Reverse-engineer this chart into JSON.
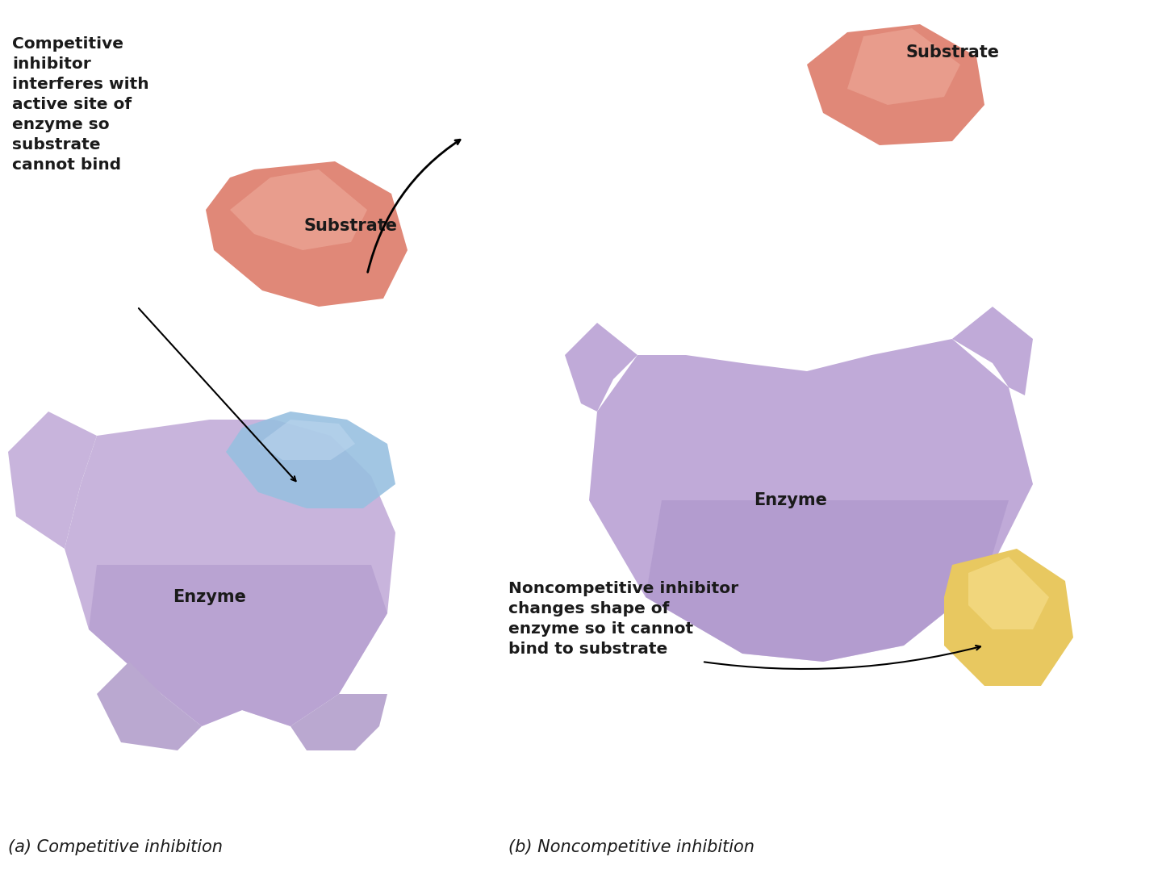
{
  "background_color": "#ffffff",
  "title_a": "(a) Competitive inhibition",
  "title_b": "(b) Noncompetitive inhibition",
  "label_substrate": "Substrate",
  "label_enzyme": "Enzyme",
  "label_competitive": "Competitive\ninhibitor\ninterferes with\nactive site of\nenzyme so\nsubstrate\ncannot bind",
  "label_noncompetitive": "Noncompetitive inhibitor\nchanges shape of\nenzyme so it cannot\nbind to substrate",
  "enzyme_color_left_light": "#d4b8e0",
  "enzyme_color_left_dark": "#b090c8",
  "enzyme_color_right_light": "#c8b0dc",
  "enzyme_color_right_dark": "#a888c8",
  "substrate_color_light": "#f0a090",
  "substrate_color_dark": "#d06860",
  "inhibitor_blue_light": "#b8d8f0",
  "inhibitor_blue_dark": "#88b0d8",
  "inhibitor_yellow_light": "#f8e090",
  "inhibitor_yellow_dark": "#e0c060",
  "text_color": "#1a1a1a",
  "annotation_color": "#222222",
  "font_size_labels": 15,
  "font_size_titles": 15,
  "font_size_annotations": 14.5
}
